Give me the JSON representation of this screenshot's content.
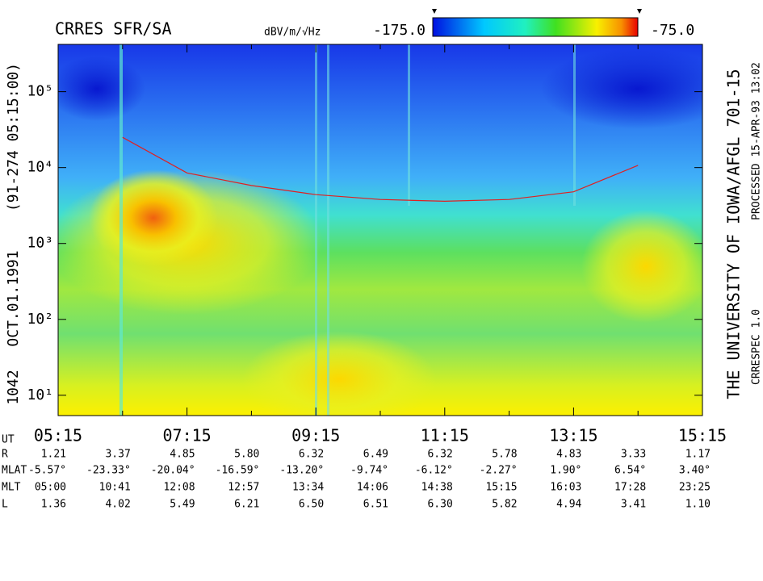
{
  "chart_data": {
    "type": "spectrogram",
    "title": "CRRES SFR/SA",
    "side_labels": [
      "1042",
      "OCT.01.1991",
      "(91-274 05:15:00)"
    ],
    "credit": "THE UNIVERSITY OF IOWA/AFGL 701-15",
    "software": "CRRESPEC 1.0",
    "processed": "PROCESSED 15-APR-93  13:02",
    "colorbar": {
      "label": "dBV/m/√Hz",
      "min": {
        "value": -175,
        "label": "-175.0"
      },
      "max": {
        "value": -75,
        "label": "-75.0"
      }
    },
    "log_y": true,
    "ylim": [
      5.4,
      420000
    ],
    "yticks": [
      {
        "value": 10,
        "label": "10¹"
      },
      {
        "value": 100,
        "label": "10²"
      },
      {
        "value": 1000,
        "label": "10³"
      },
      {
        "value": 10000,
        "label": "10⁴"
      },
      {
        "value": 100000,
        "label": "10⁵"
      }
    ],
    "xlim": [
      315,
      915
    ],
    "xticks": [
      {
        "value": 315,
        "label": "05:15"
      },
      {
        "value": 435,
        "label": "07:15"
      },
      {
        "value": 555,
        "label": "09:15"
      },
      {
        "value": 675,
        "label": "11:15"
      },
      {
        "value": 795,
        "label": "13:15"
      },
      {
        "value": 915,
        "label": "15:15"
      }
    ],
    "xminorticks": [
      375,
      495,
      615,
      735,
      855
    ],
    "x_axis_row": "UT",
    "line": {
      "color": "#e02020",
      "x": [
        375,
        435,
        495,
        555,
        615,
        675,
        735,
        795,
        855
      ],
      "values": [
        25000,
        8500,
        5800,
        4400,
        3800,
        3600,
        3800,
        4800,
        10700
      ]
    },
    "ephemeris": [
      {
        "name": "R",
        "values": [
          "1.21",
          "3.37",
          "4.85",
          "5.80",
          "6.32",
          "6.49",
          "6.32",
          "5.78",
          "4.83",
          "3.33",
          "1.17"
        ]
      },
      {
        "name": "MLAT",
        "values": [
          "-5.57°",
          "-23.33°",
          "-20.04°",
          "-16.59°",
          "-13.20°",
          "-9.74°",
          "-6.12°",
          "-2.27°",
          "1.90°",
          "6.54°",
          "3.40°"
        ]
      },
      {
        "name": "MLT",
        "values": [
          "05:00",
          "10:41",
          "12:08",
          "12:57",
          "13:34",
          "14:06",
          "14:38",
          "15:15",
          "16:03",
          "17:28",
          "23:25"
        ]
      },
      {
        "name": "L",
        "values": [
          "1.36",
          "4.02",
          "5.49",
          "6.21",
          "6.50",
          "6.51",
          "6.30",
          "5.82",
          "4.94",
          "3.41",
          "1.10"
        ]
      }
    ]
  }
}
